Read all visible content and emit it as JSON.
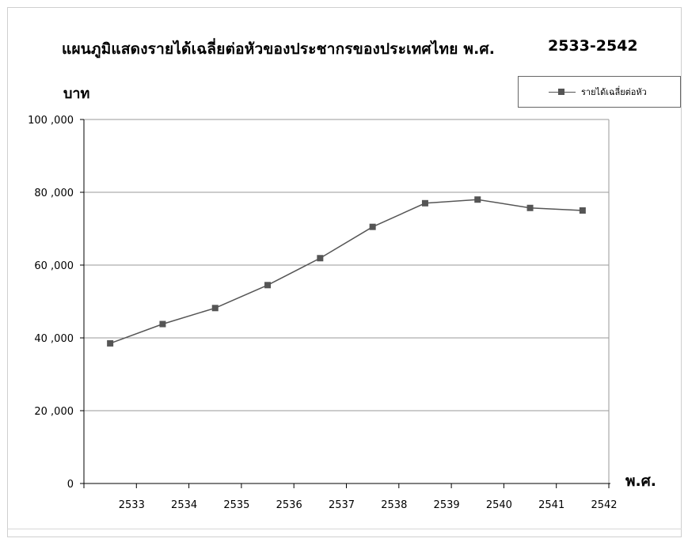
{
  "chart_data": {
    "type": "line",
    "title": "แผนภูมิแสดงรายได้เฉลี่ยต่อหัวของประชากรของประเทศไทย พ.ศ.",
    "title_years": "2533-2542",
    "ylabel": "บาท",
    "xlabel": "พ.ศ.",
    "ylim": [
      0,
      100000
    ],
    "y_ticks": [
      0,
      20000,
      40000,
      60000,
      80000,
      100000
    ],
    "y_tick_labels": [
      "0",
      "20 ,000",
      "40 ,000",
      "60 ,000",
      "80 ,000",
      "100 ,000"
    ],
    "x_tick_labels": [
      "2533",
      "2534",
      "2535",
      "2536",
      "2537",
      "2538",
      "2539",
      "2540",
      "2541",
      "2542"
    ],
    "grid": true,
    "legend_position": "top-right",
    "series": [
      {
        "name": "รายได้เฉลี่ยต่อหัว",
        "color": "#555555",
        "values": [
          38500,
          43800,
          48200,
          54500,
          61900,
          70500,
          77000,
          78000,
          75700,
          75000
        ]
      }
    ]
  }
}
